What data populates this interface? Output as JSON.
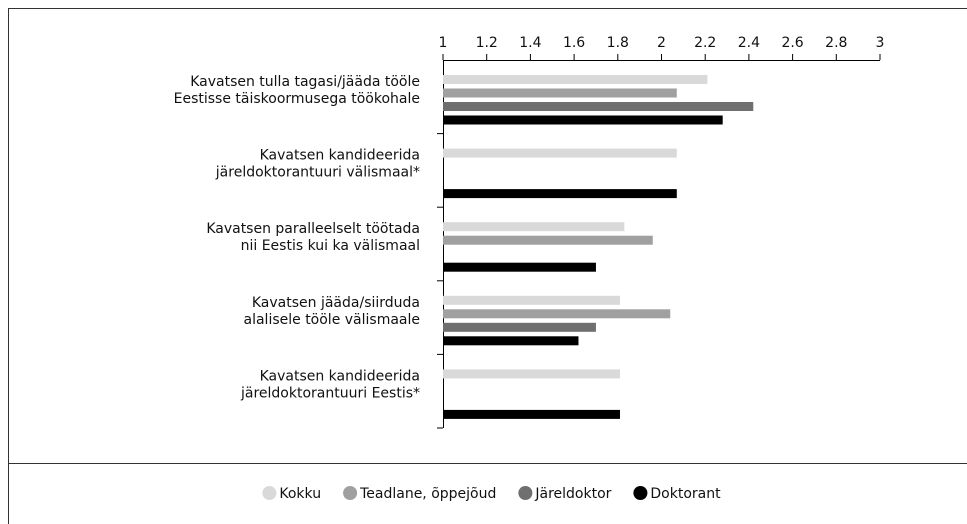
{
  "chart_data": {
    "type": "bar",
    "orientation": "horizontal",
    "categories": [
      [
        "Kavatsen tulla tagasi/jääda tööle",
        "Eestisse täiskoormusega töökohale"
      ],
      [
        "Kavatsen kandideerida",
        "järeldoktorantuuri välismaal*"
      ],
      [
        "Kavatsen paralleelselt töötada",
        "nii Eestis kui ka välismaal"
      ],
      [
        "Kavatsen jääda/siirduda",
        "alalisele tööle välismaale"
      ],
      [
        "Kavatsen kandideerida",
        "järeldoktorantuuri Eestis*"
      ]
    ],
    "series": [
      {
        "name": "Kokku",
        "color": "#d9d9d9",
        "values": [
          2.21,
          2.07,
          1.83,
          1.81,
          1.81
        ]
      },
      {
        "name": "Teadlane, õppejõud",
        "color": "#a0a0a0",
        "values": [
          2.07,
          null,
          1.96,
          2.04,
          null
        ]
      },
      {
        "name": "Järeldoktor",
        "color": "#6f6f6f",
        "values": [
          2.42,
          null,
          null,
          1.7,
          null
        ]
      },
      {
        "name": "Doktorant",
        "color": "#000000",
        "values": [
          2.28,
          2.07,
          1.7,
          1.62,
          1.81
        ]
      }
    ],
    "xlim": [
      1,
      3
    ],
    "xticks": [
      1,
      1.2,
      1.4,
      1.6,
      1.8,
      2,
      2.2,
      2.4,
      2.6,
      2.8,
      3
    ],
    "legend": "bottom"
  }
}
